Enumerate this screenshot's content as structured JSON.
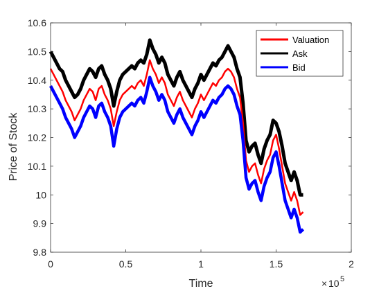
{
  "chart_data": {
    "type": "line",
    "title": "",
    "xlabel": "Time",
    "ylabel": "Price of Stock",
    "x_exponent_label": "10",
    "x_exponent_power": "5",
    "xlim": [
      0,
      200000
    ],
    "ylim": [
      9.8,
      10.6
    ],
    "x_ticks": [
      0,
      50000,
      100000,
      150000,
      200000
    ],
    "x_tick_labels": [
      "0",
      "0.5",
      "1",
      "1.5",
      "2"
    ],
    "y_ticks": [
      9.8,
      9.9,
      10.0,
      10.1,
      10.2,
      10.3,
      10.4,
      10.5,
      10.6
    ],
    "y_tick_labels": [
      "9.8",
      "9.9",
      "10",
      "10.1",
      "10.2",
      "10.3",
      "10.4",
      "10.5",
      "10.6"
    ],
    "grid": false,
    "legend_position": "top-right",
    "x": [
      0,
      2000,
      4000,
      6000,
      8000,
      10000,
      12000,
      14000,
      16000,
      18000,
      20000,
      22000,
      24000,
      26000,
      28000,
      30000,
      32000,
      34000,
      36000,
      38000,
      40000,
      42000,
      44000,
      46000,
      48000,
      50000,
      52000,
      54000,
      56000,
      58000,
      60000,
      62000,
      64000,
      66000,
      68000,
      70000,
      72000,
      74000,
      76000,
      78000,
      80000,
      82000,
      84000,
      86000,
      88000,
      90000,
      92000,
      94000,
      96000,
      98000,
      100000,
      102000,
      104000,
      106000,
      108000,
      110000,
      112000,
      114000,
      116000,
      118000,
      120000,
      122000,
      124000,
      126000,
      128000,
      130000,
      132000,
      134000,
      136000,
      138000,
      140000,
      142000,
      144000,
      146000,
      148000,
      150000,
      152000,
      154000,
      156000,
      158000,
      160000,
      162000,
      164000,
      166000,
      168000
    ],
    "series": [
      {
        "name": "Valuation",
        "color": "#ff0000",
        "values": [
          10.44,
          10.42,
          10.4,
          10.38,
          10.36,
          10.33,
          10.31,
          10.29,
          10.26,
          10.28,
          10.3,
          10.33,
          10.35,
          10.37,
          10.36,
          10.33,
          10.37,
          10.38,
          10.35,
          10.33,
          10.3,
          10.24,
          10.29,
          10.33,
          10.35,
          10.36,
          10.37,
          10.38,
          10.37,
          10.39,
          10.4,
          10.38,
          10.42,
          10.47,
          10.44,
          10.42,
          10.39,
          10.41,
          10.39,
          10.35,
          10.33,
          10.31,
          10.34,
          10.36,
          10.33,
          10.31,
          10.29,
          10.27,
          10.3,
          10.32,
          10.35,
          10.33,
          10.35,
          10.37,
          10.39,
          10.38,
          10.4,
          10.41,
          10.43,
          10.44,
          10.43,
          10.41,
          10.37,
          10.34,
          10.25,
          10.12,
          10.08,
          10.1,
          10.11,
          10.07,
          10.04,
          10.09,
          10.12,
          10.14,
          10.19,
          10.21,
          10.16,
          10.1,
          10.04,
          10.01,
          9.98,
          10.01,
          9.98,
          9.93,
          9.94
        ]
      },
      {
        "name": "Ask",
        "color": "#000000",
        "values": [
          10.5,
          10.48,
          10.46,
          10.44,
          10.43,
          10.4,
          10.38,
          10.36,
          10.34,
          10.35,
          10.37,
          10.4,
          10.42,
          10.44,
          10.43,
          10.41,
          10.44,
          10.45,
          10.42,
          10.4,
          10.37,
          10.31,
          10.36,
          10.4,
          10.42,
          10.43,
          10.44,
          10.45,
          10.44,
          10.46,
          10.47,
          10.46,
          10.49,
          10.54,
          10.51,
          10.49,
          10.46,
          10.48,
          10.46,
          10.42,
          10.4,
          10.38,
          10.41,
          10.43,
          10.4,
          10.38,
          10.36,
          10.34,
          10.37,
          10.39,
          10.42,
          10.4,
          10.42,
          10.44,
          10.46,
          10.45,
          10.47,
          10.48,
          10.5,
          10.52,
          10.5,
          10.48,
          10.44,
          10.41,
          10.32,
          10.19,
          10.15,
          10.17,
          10.18,
          10.14,
          10.11,
          10.16,
          10.19,
          10.21,
          10.26,
          10.25,
          10.22,
          10.17,
          10.11,
          10.08,
          10.05,
          10.08,
          10.05,
          10.0,
          10.0
        ]
      },
      {
        "name": "Bid",
        "color": "#0000ff",
        "values": [
          10.38,
          10.36,
          10.34,
          10.32,
          10.3,
          10.27,
          10.25,
          10.23,
          10.2,
          10.22,
          10.24,
          10.27,
          10.29,
          10.31,
          10.3,
          10.27,
          10.31,
          10.32,
          10.29,
          10.27,
          10.24,
          10.17,
          10.23,
          10.27,
          10.29,
          10.3,
          10.31,
          10.32,
          10.31,
          10.33,
          10.34,
          10.32,
          10.36,
          10.41,
          10.38,
          10.36,
          10.33,
          10.35,
          10.33,
          10.29,
          10.27,
          10.25,
          10.28,
          10.3,
          10.27,
          10.25,
          10.23,
          10.21,
          10.24,
          10.26,
          10.29,
          10.27,
          10.29,
          10.31,
          10.33,
          10.32,
          10.34,
          10.35,
          10.37,
          10.38,
          10.37,
          10.35,
          10.31,
          10.28,
          10.19,
          10.06,
          10.02,
          10.04,
          10.05,
          10.01,
          9.98,
          10.03,
          10.06,
          10.08,
          10.13,
          10.15,
          10.1,
          10.04,
          9.98,
          9.95,
          9.92,
          9.95,
          9.92,
          9.87,
          9.88
        ]
      }
    ]
  }
}
